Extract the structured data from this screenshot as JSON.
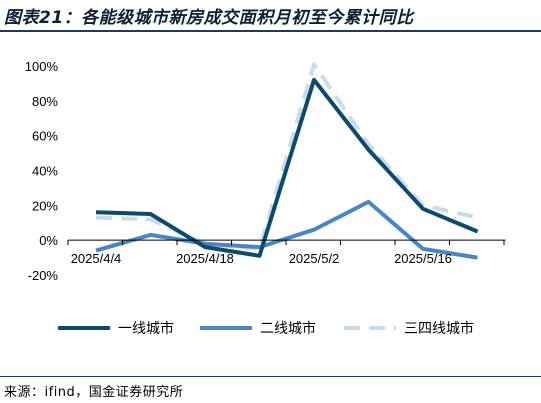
{
  "title": "图表21：各能级城市新房成交面积月初至今累计同比",
  "source": "来源：ifind，国金证券研究所",
  "chart_data": {
    "type": "line",
    "x": [
      "2025/4/4",
      "2025/4/11",
      "2025/4/18",
      "2025/4/25",
      "2025/5/2",
      "2025/5/9",
      "2025/5/16",
      "2025/5/23"
    ],
    "x_tick_labels": [
      "2025/4/4",
      "2025/4/18",
      "2025/5/2",
      "2025/5/16"
    ],
    "x_tick_positions": [
      0,
      2,
      4,
      6
    ],
    "series": [
      {
        "name": "一线城市",
        "color": "#0d4a6b",
        "dash": "solid",
        "values": [
          16,
          15,
          -4,
          -9,
          92,
          52,
          18,
          5
        ]
      },
      {
        "name": "二线城市",
        "color": "#4a86c5",
        "dash": "solid",
        "values": [
          -6,
          3,
          -2,
          -4,
          6,
          22,
          -5,
          -10
        ]
      },
      {
        "name": "三四线城市",
        "color": "#c9dcee",
        "dash": "dashed",
        "values": [
          13,
          12,
          -2,
          -5,
          101,
          55,
          20,
          13
        ]
      }
    ],
    "y_ticks": [
      "100%",
      "80%",
      "60%",
      "40%",
      "20%",
      "0%",
      "-20%"
    ],
    "y_tick_values": [
      100,
      80,
      60,
      40,
      20,
      0,
      -20
    ],
    "ylim": [
      -20,
      100
    ],
    "xlabel": "",
    "ylabel": "",
    "grid": false,
    "legend_position": "bottom"
  }
}
